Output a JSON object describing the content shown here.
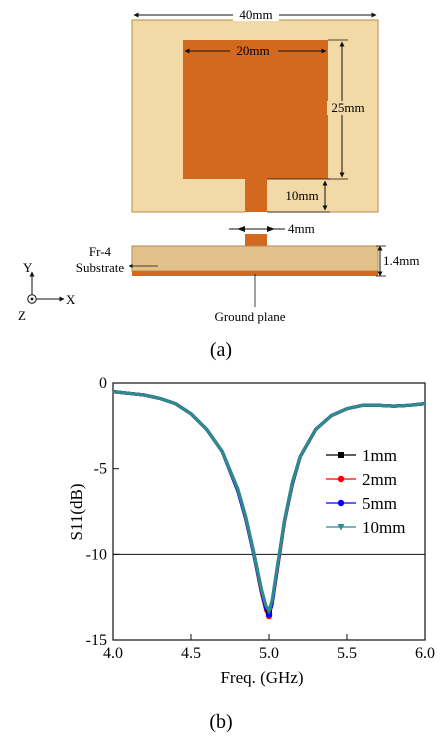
{
  "figure_a": {
    "caption": "(a)",
    "dim_width": "40mm",
    "dim_patch_width": "20mm",
    "dim_patch_height": "25mm",
    "dim_feed_length": "10mm",
    "dim_feed_width": "4mm",
    "dim_thickness": "1.4mm",
    "substrate_label_1": "Fr-4",
    "substrate_label_2": "Substrate",
    "ground_label": "Ground plane",
    "axis_y": "Y",
    "axis_x": "X",
    "axis_z": "Z",
    "colors": {
      "substrate": "#f2d9a6",
      "copper": "#d2691e",
      "copper_dark": "#b3561a"
    }
  },
  "figure_b": {
    "caption": "(b)"
  },
  "chart_data": {
    "type": "line",
    "title": "",
    "xlabel": "Freq. (GHz)",
    "ylabel": "S11(dB)",
    "xlim": [
      4.0,
      6.0
    ],
    "ylim": [
      -15,
      0
    ],
    "x_ticks": [
      "4.0",
      "4.5",
      "5.0",
      "5.5",
      "6.0"
    ],
    "y_ticks": [
      "0",
      "-5",
      "-10",
      "-15"
    ],
    "reference_line_y": -10,
    "legend_position": "right",
    "x": [
      4.0,
      4.1,
      4.2,
      4.3,
      4.4,
      4.5,
      4.6,
      4.7,
      4.8,
      4.85,
      4.9,
      4.95,
      4.98,
      5.0,
      5.02,
      5.05,
      5.1,
      5.15,
      5.2,
      5.3,
      5.4,
      5.5,
      5.6,
      5.7,
      5.8,
      5.9,
      6.0
    ],
    "series": [
      {
        "name": "1mm",
        "color": "#000000",
        "marker": "square",
        "values": [
          -0.5,
          -0.6,
          -0.7,
          -0.9,
          -1.2,
          -1.8,
          -2.7,
          -4.0,
          -6.2,
          -7.8,
          -9.8,
          -12.0,
          -13.1,
          -13.4,
          -12.8,
          -11.0,
          -8.0,
          -5.8,
          -4.3,
          -2.7,
          -1.9,
          -1.5,
          -1.3,
          -1.3,
          -1.35,
          -1.3,
          -1.2
        ]
      },
      {
        "name": "2mm",
        "color": "#ff0000",
        "marker": "circle",
        "values": [
          -0.5,
          -0.6,
          -0.7,
          -0.9,
          -1.2,
          -1.8,
          -2.7,
          -4.0,
          -6.3,
          -7.9,
          -9.9,
          -12.2,
          -13.3,
          -13.6,
          -12.9,
          -11.1,
          -8.1,
          -5.9,
          -4.3,
          -2.7,
          -1.9,
          -1.5,
          -1.3,
          -1.3,
          -1.35,
          -1.3,
          -1.2
        ]
      },
      {
        "name": "5mm",
        "color": "#0000ff",
        "marker": "circle",
        "values": [
          -0.5,
          -0.6,
          -0.7,
          -0.9,
          -1.2,
          -1.8,
          -2.7,
          -4.0,
          -6.3,
          -7.9,
          -9.9,
          -12.1,
          -13.2,
          -13.5,
          -12.9,
          -11.0,
          -8.0,
          -5.9,
          -4.3,
          -2.7,
          -1.9,
          -1.5,
          -1.3,
          -1.3,
          -1.35,
          -1.3,
          -1.2
        ]
      },
      {
        "name": "10mm",
        "color": "#2e8b8b",
        "marker": "triangle",
        "values": [
          -0.5,
          -0.6,
          -0.7,
          -0.9,
          -1.2,
          -1.8,
          -2.7,
          -4.0,
          -6.2,
          -7.8,
          -9.8,
          -12.0,
          -13.0,
          -13.3,
          -12.7,
          -10.9,
          -8.0,
          -5.8,
          -4.3,
          -2.7,
          -1.9,
          -1.5,
          -1.3,
          -1.3,
          -1.35,
          -1.3,
          -1.2
        ]
      }
    ]
  }
}
